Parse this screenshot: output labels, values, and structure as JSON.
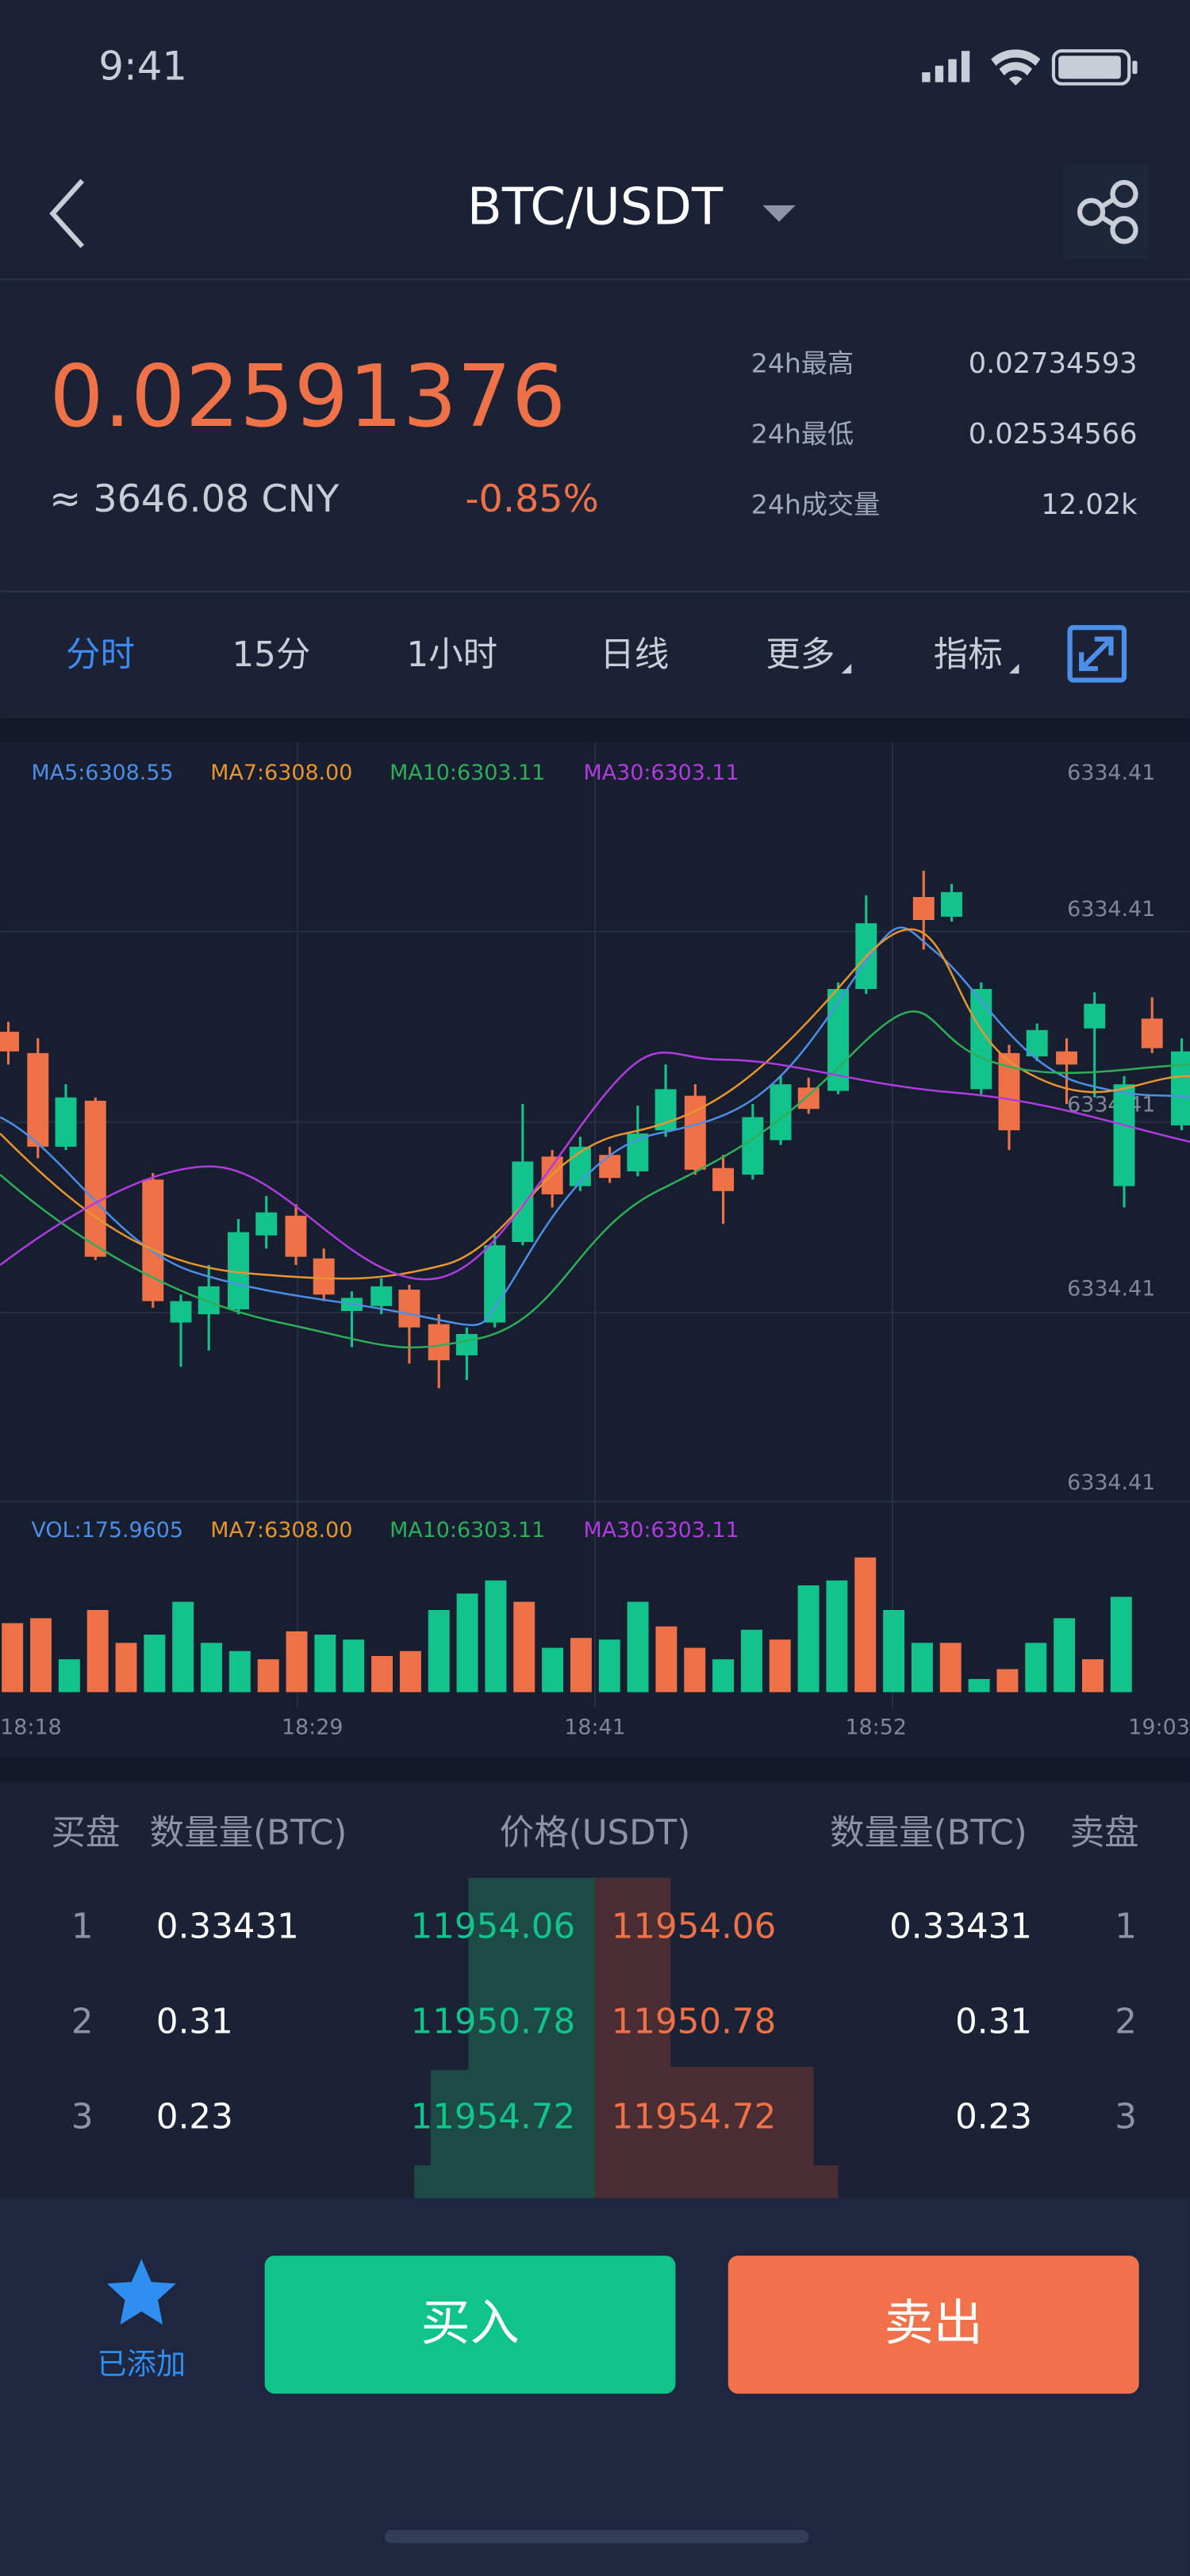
{
  "status_bar": {
    "time": "9:41"
  },
  "header": {
    "title": "BTC/USDT"
  },
  "ticker": {
    "price": "0.02591376",
    "cny": "≈ 3646.08 CNY",
    "change": "-0.85%",
    "stats": [
      {
        "label": "24h最高",
        "value": "0.02734593"
      },
      {
        "label": "24h最低",
        "value": "0.02534566"
      },
      {
        "label": "24h成交量",
        "value": "12.02k"
      }
    ]
  },
  "tabs": [
    "分时",
    "15分",
    "1小时",
    "日线",
    "更多",
    "指标"
  ],
  "kline": {
    "ma_legend": [
      "MA5:6308.55",
      "MA7:6308.00",
      "MA10:6303.11",
      "MA30:6303.11"
    ],
    "price_labels": [
      "6334.41",
      "6334.41",
      "6334.41",
      "6334.41",
      "6334.41"
    ],
    "vol_legend": [
      "VOL:175.9605",
      "MA7:6308.00",
      "MA10:6303.11",
      "MA30:6303.11"
    ],
    "times": [
      "18:18",
      "18:29",
      "18:41",
      "18:52",
      "19:03"
    ]
  },
  "order_book": {
    "headers": [
      "买盘",
      "数量量(BTC)",
      "价格(USDT)",
      "数量量(BTC)",
      "卖盘"
    ],
    "rows": [
      [
        "1",
        "0.33431",
        "11954.06",
        "11954.06",
        "0.33431",
        "1"
      ],
      [
        "2",
        "0.31",
        "11950.78",
        "11950.78",
        "0.31",
        "2"
      ],
      [
        "3",
        "0.23",
        "11954.72",
        "11954.72",
        "0.23",
        "3"
      ]
    ]
  },
  "actions": {
    "favorite": "已添加",
    "buy": "买入",
    "sell": "卖出"
  }
}
